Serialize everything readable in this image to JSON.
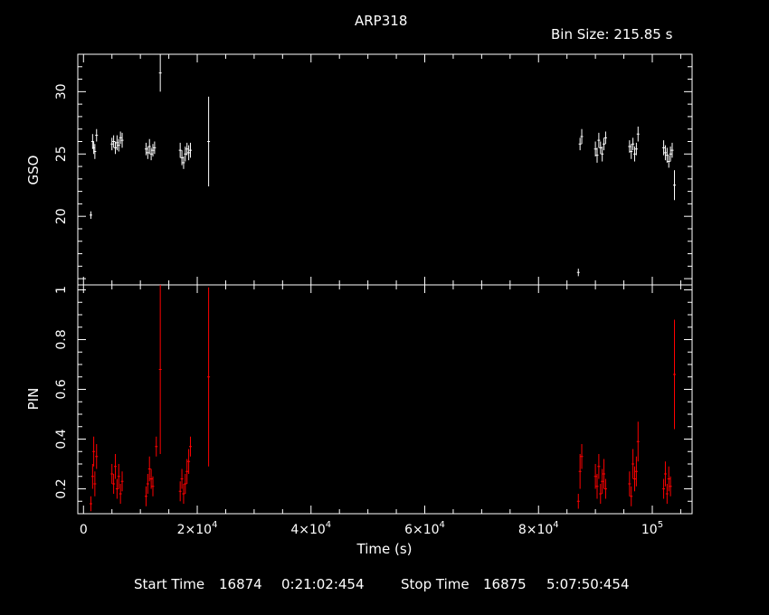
{
  "header": {
    "title": "ARP318",
    "bin_size": "Bin Size: 215.85 s"
  },
  "footer": {
    "start_label": "Start Time",
    "start_day": "16874",
    "start_time": "0:21:02:454",
    "stop_label": "Stop Time",
    "stop_day": "16875",
    "stop_time": "5:07:50:454"
  },
  "colors": {
    "background": "#000000",
    "axes": "#ffffff",
    "gso": "#ffffff",
    "pin": "#ff0000"
  },
  "chart_data": [
    {
      "type": "scatter",
      "panel": "top",
      "xlabel": "",
      "ylabel": "GSO",
      "xlim": [
        -1000,
        107000
      ],
      "ylim": [
        14.5,
        33
      ],
      "yticks": [
        "20",
        "25",
        "30"
      ],
      "ytick_values": [
        20,
        25,
        30
      ],
      "error_bars": true,
      "series": [
        {
          "points": [
            [
              1300,
              20.1,
              0.3
            ],
            [
              1600,
              26.0,
              0.6
            ],
            [
              1800,
              25.5,
              0.5
            ],
            [
              2000,
              25.2,
              0.6
            ],
            [
              2300,
              26.5,
              0.5
            ],
            [
              5000,
              25.8,
              0.5
            ],
            [
              5300,
              26.0,
              0.5
            ],
            [
              5600,
              25.5,
              0.5
            ],
            [
              5900,
              25.9,
              0.6
            ],
            [
              6200,
              25.7,
              0.5
            ],
            [
              6500,
              26.3,
              0.5
            ],
            [
              6800,
              26.1,
              0.6
            ],
            [
              11000,
              25.4,
              0.5
            ],
            [
              11300,
              25.1,
              0.5
            ],
            [
              11600,
              25.6,
              0.6
            ],
            [
              11900,
              25.0,
              0.5
            ],
            [
              12200,
              25.3,
              0.5
            ],
            [
              12500,
              25.5,
              0.5
            ],
            [
              13500,
              31.5,
              1.5
            ],
            [
              17000,
              25.3,
              0.6
            ],
            [
              17300,
              24.7,
              0.6
            ],
            [
              17600,
              24.3,
              0.5
            ],
            [
              17900,
              25.0,
              0.6
            ],
            [
              18200,
              25.4,
              0.5
            ],
            [
              18500,
              25.1,
              0.6
            ],
            [
              18800,
              25.3,
              0.6
            ],
            [
              22000,
              26.0,
              3.6
            ],
            [
              87000,
              15.5,
              0.3
            ],
            [
              87300,
              25.8,
              0.5
            ],
            [
              87600,
              26.4,
              0.6
            ],
            [
              90000,
              25.4,
              0.6
            ],
            [
              90300,
              24.9,
              0.6
            ],
            [
              90600,
              26.1,
              0.6
            ],
            [
              90900,
              25.5,
              0.5
            ],
            [
              91200,
              25.0,
              0.6
            ],
            [
              91500,
              25.8,
              0.5
            ],
            [
              91800,
              26.3,
              0.5
            ],
            [
              96000,
              25.6,
              0.5
            ],
            [
              96300,
              25.2,
              0.6
            ],
            [
              96600,
              25.8,
              0.5
            ],
            [
              96900,
              25.0,
              0.6
            ],
            [
              97200,
              25.4,
              0.5
            ],
            [
              97500,
              26.6,
              0.6
            ],
            [
              102000,
              25.5,
              0.6
            ],
            [
              102300,
              25.1,
              0.6
            ],
            [
              102600,
              24.9,
              0.6
            ],
            [
              102900,
              24.4,
              0.5
            ],
            [
              103200,
              25.0,
              0.6
            ],
            [
              103500,
              25.3,
              0.6
            ],
            [
              103900,
              22.5,
              1.2
            ]
          ]
        }
      ]
    },
    {
      "type": "scatter",
      "panel": "bottom",
      "xlabel": "Time (s)",
      "ylabel": "PIN",
      "xlim": [
        -1000,
        107000
      ],
      "ylim": [
        0.1,
        1.02
      ],
      "yticks": [
        "0.2",
        "0.4",
        "0.6",
        "0.8",
        "1"
      ],
      "ytick_values": [
        0.2,
        0.4,
        0.6,
        0.8,
        1.0
      ],
      "xticks": [
        "0",
        "2×10",
        "4×10",
        "6×10",
        "8×10",
        "10"
      ],
      "xtick_exponents": [
        "",
        "4",
        "4",
        "4",
        "4",
        "5"
      ],
      "xtick_values": [
        0,
        20000,
        40000,
        60000,
        80000,
        100000
      ],
      "error_bars": true,
      "series": [
        {
          "points": [
            [
              1300,
              0.14,
              0.03
            ],
            [
              1600,
              0.25,
              0.05
            ],
            [
              1800,
              0.35,
              0.06
            ],
            [
              2000,
              0.22,
              0.05
            ],
            [
              2300,
              0.33,
              0.05
            ],
            [
              5000,
              0.26,
              0.04
            ],
            [
              5300,
              0.22,
              0.04
            ],
            [
              5600,
              0.29,
              0.05
            ],
            [
              5900,
              0.2,
              0.04
            ],
            [
              6200,
              0.25,
              0.05
            ],
            [
              6500,
              0.18,
              0.04
            ],
            [
              6800,
              0.23,
              0.04
            ],
            [
              11000,
              0.17,
              0.04
            ],
            [
              11300,
              0.22,
              0.04
            ],
            [
              11600,
              0.28,
              0.05
            ],
            [
              11900,
              0.24,
              0.04
            ],
            [
              12200,
              0.21,
              0.04
            ],
            [
              12800,
              0.37,
              0.04
            ],
            [
              13500,
              0.68,
              0.34
            ],
            [
              17000,
              0.19,
              0.04
            ],
            [
              17300,
              0.24,
              0.04
            ],
            [
              17600,
              0.18,
              0.04
            ],
            [
              17900,
              0.22,
              0.04
            ],
            [
              18200,
              0.27,
              0.05
            ],
            [
              18500,
              0.31,
              0.05
            ],
            [
              18800,
              0.37,
              0.04
            ],
            [
              22000,
              0.65,
              0.36
            ],
            [
              87000,
              0.15,
              0.03
            ],
            [
              87300,
              0.27,
              0.07
            ],
            [
              87600,
              0.33,
              0.05
            ],
            [
              90000,
              0.25,
              0.05
            ],
            [
              90300,
              0.21,
              0.05
            ],
            [
              90600,
              0.29,
              0.05
            ],
            [
              90900,
              0.18,
              0.04
            ],
            [
              91200,
              0.23,
              0.05
            ],
            [
              91500,
              0.26,
              0.06
            ],
            [
              91800,
              0.2,
              0.04
            ],
            [
              96000,
              0.22,
              0.05
            ],
            [
              96300,
              0.17,
              0.04
            ],
            [
              96600,
              0.3,
              0.06
            ],
            [
              96900,
              0.24,
              0.05
            ],
            [
              97200,
              0.27,
              0.06
            ],
            [
              97500,
              0.39,
              0.08
            ],
            [
              102000,
              0.2,
              0.04
            ],
            [
              102300,
              0.26,
              0.05
            ],
            [
              102600,
              0.18,
              0.04
            ],
            [
              102900,
              0.24,
              0.05
            ],
            [
              103200,
              0.21,
              0.04
            ],
            [
              103900,
              0.66,
              0.22
            ]
          ]
        }
      ]
    }
  ]
}
